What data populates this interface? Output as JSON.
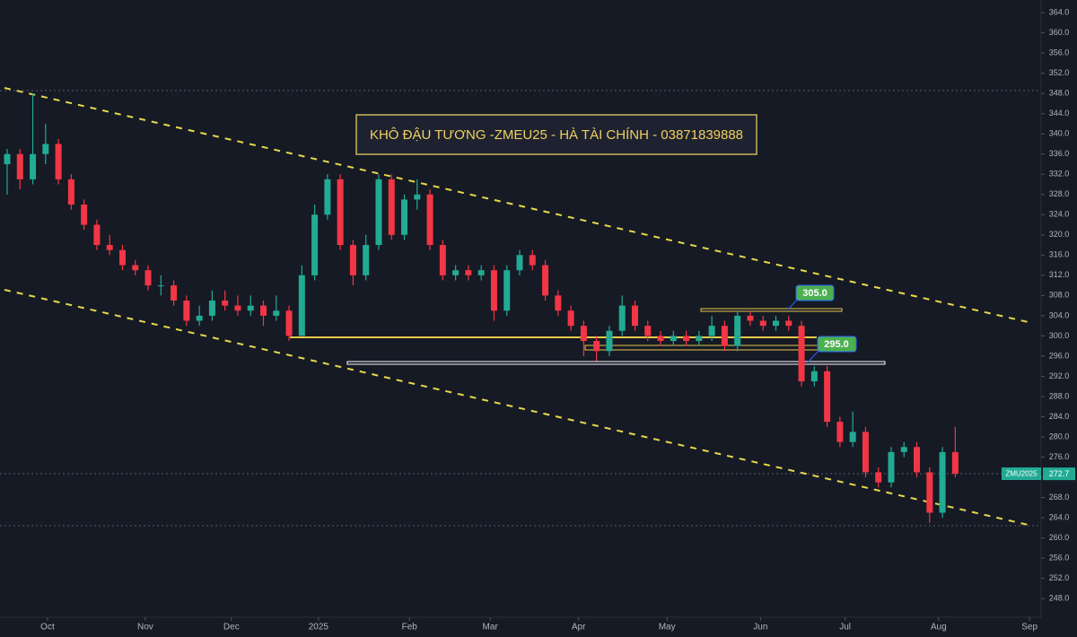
{
  "chart_data": {
    "type": "candlestick",
    "title": "KHÔ ĐẬU TƯƠNG -ZMEU25 - HÀ TÀI CHÍNH - 03871839888",
    "symbol": "ZMU2025",
    "price_labels": [
      "305.0",
      "295.0"
    ],
    "up_color": "#22ab94",
    "down_color": "#f23645",
    "xlim": [
      -0.56,
      80.7
    ],
    "ylim": [
      244.3,
      366.5
    ],
    "xticks": [
      {
        "value": 3.15,
        "label": "Oct"
      },
      {
        "value": 10.78,
        "label": "Nov"
      },
      {
        "value": 17.5,
        "label": "Dec"
      },
      {
        "value": 24.3,
        "label": "2025"
      },
      {
        "value": 31.4,
        "label": "Feb"
      },
      {
        "value": 37.7,
        "label": "Mar"
      },
      {
        "value": 44.6,
        "label": "Apr"
      },
      {
        "value": 51.5,
        "label": "May"
      },
      {
        "value": 58.8,
        "label": "Jun"
      },
      {
        "value": 65.4,
        "label": "Jul"
      },
      {
        "value": 72.7,
        "label": "Aug"
      },
      {
        "value": 79.8,
        "label": "Sep"
      }
    ],
    "yticks": [
      {
        "value": 248,
        "label": "248.0"
      },
      {
        "value": 252,
        "label": "252.0"
      },
      {
        "value": 256,
        "label": "256.0"
      },
      {
        "value": 260,
        "label": "260.0"
      },
      {
        "value": 264,
        "label": "264.0"
      },
      {
        "value": 268,
        "label": "268.0"
      },
      {
        "value": 272,
        "label": "272.0"
      },
      {
        "value": 276,
        "label": "276.0"
      },
      {
        "value": 280,
        "label": "280.0"
      },
      {
        "value": 284,
        "label": "284.0"
      },
      {
        "value": 288,
        "label": "288.0"
      },
      {
        "value": 292,
        "label": "292.0"
      },
      {
        "value": 296,
        "label": "296.0"
      },
      {
        "value": 300,
        "label": "300.0"
      },
      {
        "value": 304,
        "label": "304.0"
      },
      {
        "value": 308,
        "label": "308.0"
      },
      {
        "value": 312,
        "label": "312.0"
      },
      {
        "value": 316,
        "label": "316.0"
      },
      {
        "value": 320,
        "label": "320.0"
      },
      {
        "value": 324,
        "label": "324.0"
      },
      {
        "value": 328,
        "label": "328.0"
      },
      {
        "value": 332,
        "label": "332.0"
      },
      {
        "value": 336,
        "label": "336.0"
      },
      {
        "value": 340,
        "label": "340.0"
      },
      {
        "value": 344,
        "label": "344.0"
      },
      {
        "value": 348,
        "label": "348.0"
      },
      {
        "value": 352,
        "label": "352.0"
      },
      {
        "value": 356,
        "label": "356.0"
      },
      {
        "value": 360,
        "label": "360.0"
      },
      {
        "value": 364,
        "label": "364.0"
      }
    ],
    "candles": [
      [
        334,
        337,
        328,
        336
      ],
      [
        336,
        337,
        329,
        331
      ],
      [
        331,
        348,
        330,
        336
      ],
      [
        336,
        342,
        334,
        338
      ],
      [
        338,
        339,
        330,
        331
      ],
      [
        331,
        332,
        325,
        326
      ],
      [
        326,
        327,
        321,
        322
      ],
      [
        322,
        323,
        317,
        318
      ],
      [
        318,
        320,
        316,
        317
      ],
      [
        317,
        318,
        313,
        314
      ],
      [
        314,
        315,
        312,
        313
      ],
      [
        313,
        314,
        309,
        310
      ],
      [
        310,
        312,
        308,
        310
      ],
      [
        310,
        311,
        306,
        307
      ],
      [
        307,
        308,
        302,
        303
      ],
      [
        303,
        306,
        302,
        304
      ],
      [
        304,
        309,
        303,
        307
      ],
      [
        307,
        309,
        305,
        306
      ],
      [
        306,
        308,
        304,
        305
      ],
      [
        305,
        308,
        304,
        306
      ],
      [
        306,
        307,
        302,
        304
      ],
      [
        304,
        308,
        303,
        305
      ],
      [
        305,
        306,
        299,
        300
      ],
      [
        300,
        314,
        300,
        312
      ],
      [
        312,
        326,
        311,
        324
      ],
      [
        324,
        332,
        323,
        331
      ],
      [
        331,
        332,
        317,
        318
      ],
      [
        318,
        319,
        310,
        312
      ],
      [
        312,
        320,
        311,
        318
      ],
      [
        318,
        332,
        317,
        331
      ],
      [
        331,
        332,
        319,
        320
      ],
      [
        320,
        328,
        319,
        327
      ],
      [
        327,
        331,
        325,
        328
      ],
      [
        328,
        329,
        317,
        318
      ],
      [
        318,
        319,
        311,
        312
      ],
      [
        312,
        314,
        311,
        313
      ],
      [
        313,
        314,
        311,
        312
      ],
      [
        312,
        314,
        311,
        313
      ],
      [
        313,
        314,
        303,
        305
      ],
      [
        305,
        314,
        304,
        313
      ],
      [
        313,
        317,
        312,
        316
      ],
      [
        316,
        317,
        313,
        314
      ],
      [
        314,
        315,
        307,
        308
      ],
      [
        308,
        309,
        304,
        305
      ],
      [
        305,
        306,
        301,
        302
      ],
      [
        302,
        303,
        296,
        299
      ],
      [
        299,
        300,
        295,
        297
      ],
      [
        297,
        302,
        296,
        301
      ],
      [
        301,
        308,
        300,
        306
      ],
      [
        306,
        307,
        301,
        302
      ],
      [
        302,
        303,
        299,
        300
      ],
      [
        300,
        301,
        298,
        299
      ],
      [
        299,
        301,
        298,
        300
      ],
      [
        300,
        301,
        298,
        299
      ],
      [
        299,
        301,
        298,
        300
      ],
      [
        300,
        304,
        299,
        302
      ],
      [
        302,
        303,
        297,
        298
      ],
      [
        298,
        305,
        297,
        304
      ],
      [
        304,
        305,
        302,
        303
      ],
      [
        303,
        304,
        301,
        302
      ],
      [
        302,
        304,
        301,
        303
      ],
      [
        303,
        304,
        301,
        302
      ],
      [
        302,
        303,
        290,
        291
      ],
      [
        291,
        294,
        290,
        293
      ],
      [
        293,
        294,
        282,
        283
      ],
      [
        283,
        284,
        278,
        279
      ],
      [
        279,
        285,
        278,
        281
      ],
      [
        281,
        282,
        272,
        273
      ],
      [
        273,
        274,
        270,
        271
      ],
      [
        271,
        278,
        270,
        277
      ],
      [
        277,
        279,
        276,
        278
      ],
      [
        278,
        279,
        272,
        273
      ],
      [
        273,
        274,
        263,
        265
      ],
      [
        265,
        278,
        264,
        277
      ],
      [
        277,
        282,
        272,
        272.7
      ]
    ]
  }
}
